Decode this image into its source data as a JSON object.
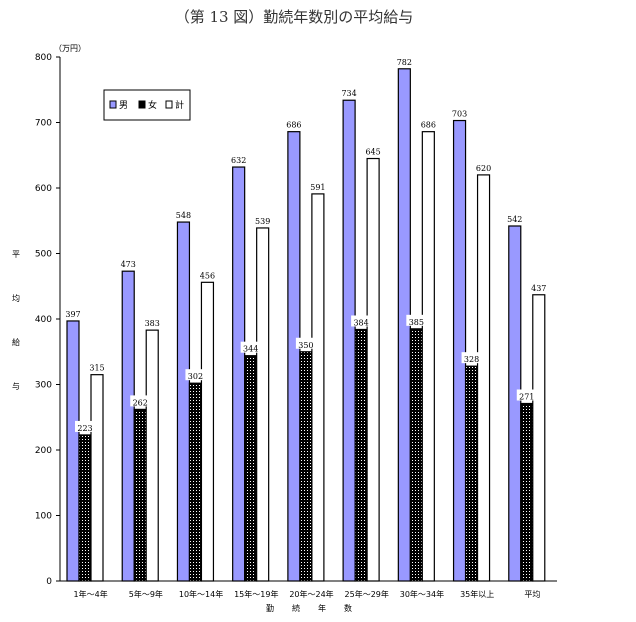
{
  "chart_data": {
    "type": "bar",
    "title": "（第 13 図）勤続年数別の平均給与",
    "unit": "（万円）",
    "ylabel": [
      "平",
      "均",
      "給",
      "与"
    ],
    "xlabel": [
      "勤",
      "続",
      "年",
      "数"
    ],
    "ylim": [
      0,
      800
    ],
    "yticks": [
      0,
      100,
      200,
      300,
      400,
      500,
      600,
      700,
      800
    ],
    "categories": [
      "1年～4年",
      "5年～9年",
      "10年～14年",
      "15年～19年",
      "20年～24年",
      "25年～29年",
      "30年～34年",
      "35年以上",
      "平均"
    ],
    "series": [
      {
        "name": "男",
        "values": [
          397,
          473,
          548,
          632,
          686,
          734,
          782,
          703,
          542
        ]
      },
      {
        "name": "女",
        "values": [
          223,
          262,
          302,
          344,
          350,
          384,
          385,
          328,
          271
        ]
      },
      {
        "name": "計",
        "values": [
          315,
          383,
          456,
          539,
          591,
          645,
          686,
          620,
          437
        ]
      }
    ],
    "legend_position": "top-left",
    "grid": false
  },
  "colors": {
    "male": "#9999ff",
    "female": "#000000",
    "total": "#ffffff"
  }
}
